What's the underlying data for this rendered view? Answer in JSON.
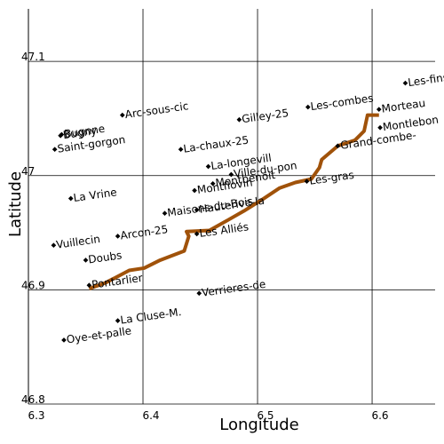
{
  "chart_data": {
    "type": "scatter",
    "x_label": "Longitude",
    "y_label": "Latitude",
    "xlim": [
      6.3,
      6.655
    ],
    "ylim": [
      46.8,
      47.146
    ],
    "xticks": [
      6.3,
      6.4,
      6.5,
      6.6
    ],
    "yticks": [
      46.8,
      46.9,
      47,
      47.1
    ],
    "grid": true,
    "series": [
      {
        "type": "line",
        "color": "#a0520a",
        "x": [
          6.353,
          6.367,
          6.388,
          6.401,
          6.415,
          6.436,
          6.44,
          6.438,
          6.458,
          6.474,
          6.488,
          6.504,
          6.519,
          6.533,
          6.547,
          6.554,
          6.556,
          6.57,
          6.585,
          6.593,
          6.596,
          6.606
        ],
        "y": [
          46.901,
          46.906,
          46.917,
          46.919,
          46.926,
          46.934,
          46.947,
          46.951,
          46.952,
          46.961,
          46.969,
          46.979,
          46.989,
          46.994,
          46.997,
          47.007,
          47.014,
          47.026,
          47.031,
          47.039,
          47.053,
          47.053
        ]
      },
      {
        "type": "scatter",
        "color": "#000000",
        "labels": [
          "Les-fins",
          "Arc-sous-cic",
          "Bugny",
          "Bugnne",
          "Saint-gorgon",
          "Gilley-25",
          "Les-combes",
          "Morteau",
          "Montlebon",
          "La-chaux-25",
          "Grand-combe-",
          "La-longevill",
          "Ville-du-pon",
          "Montbenoit",
          "Montflovin",
          "Les-gras",
          "La Vrine",
          "Maisons-du-Bois",
          "Hauterive-la",
          "Les Alliés",
          "Arcon-25",
          "Vuillecin",
          "Doubs",
          "Pontarlier",
          "Verrieres-de",
          "La Cluse-M.",
          "Oye-et-palle"
        ],
        "x": [
          6.629,
          6.382,
          6.328,
          6.329,
          6.323,
          6.484,
          6.544,
          6.606,
          6.607,
          6.433,
          6.57,
          6.457,
          6.477,
          6.461,
          6.445,
          6.543,
          6.337,
          6.419,
          6.447,
          6.447,
          6.378,
          6.322,
          6.35,
          6.353,
          6.449,
          6.378,
          6.331
        ],
        "y": [
          47.081,
          47.053,
          47.035,
          47.036,
          47.023,
          47.049,
          47.06,
          47.058,
          47.042,
          47.023,
          47.026,
          47.008,
          47.001,
          46.993,
          46.987,
          46.995,
          46.98,
          46.967,
          46.97,
          46.949,
          46.947,
          46.939,
          46.926,
          46.904,
          46.897,
          46.873,
          46.856
        ]
      }
    ]
  }
}
